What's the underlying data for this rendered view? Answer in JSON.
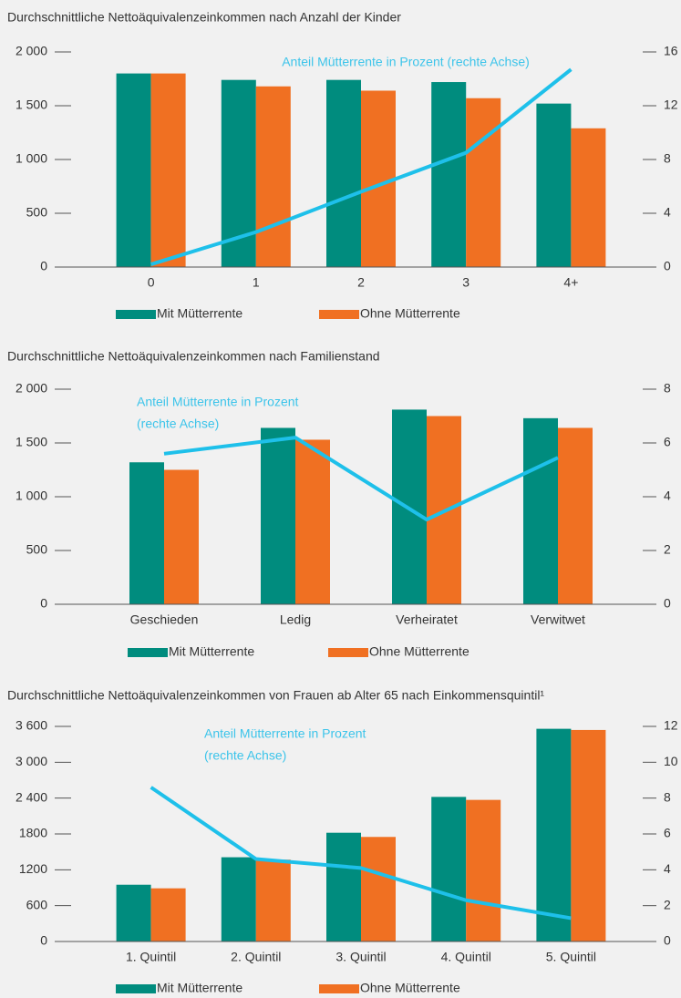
{
  "chart_data": [
    {
      "type": "bar",
      "title": "Durchschnittliche Nettoäquivalenzeinkommen nach Anzahl der Kinder",
      "categories": [
        "0",
        "1",
        "2",
        "3",
        "4+"
      ],
      "series": [
        {
          "name": "Mit Mütterrente",
          "color": "#008c7e",
          "values": [
            1800,
            1740,
            1740,
            1720,
            1520
          ]
        },
        {
          "name": "Ohne Mütterrente",
          "color": "#f07022",
          "values": [
            1800,
            1680,
            1640,
            1570,
            1290
          ]
        },
        {
          "name": "Anteil Mütterrente in Prozent",
          "color": "#1ec0ea",
          "axis": "y2",
          "kind": "line",
          "values": [
            0.2,
            2.6,
            5.6,
            8.5,
            14.7
          ]
        }
      ],
      "annotation": [
        "Anteil Mütterrente in Prozent (rechte Achse)"
      ],
      "ylim": [
        0,
        2000
      ],
      "yticks": [
        0,
        500,
        {
          "value": 1000,
          "label": "1 000"
        },
        {
          "value": 1500,
          "label": "1 500"
        },
        {
          "value": 2000,
          "label": "2 000"
        }
      ],
      "y2lim": [
        0,
        16
      ],
      "y2ticks": [
        0,
        4,
        8,
        12,
        16
      ]
    },
    {
      "type": "bar",
      "title": "Durchschnittliche Nettoäquivalenzeinkommen nach Familienstand",
      "categories": [
        "Geschieden",
        "Ledig",
        "Verheiratet",
        "Verwitwet"
      ],
      "series": [
        {
          "name": "Mit Mütterrente",
          "color": "#008c7e",
          "values": [
            1320,
            1640,
            1810,
            1730
          ]
        },
        {
          "name": "Ohne Mütterrente",
          "color": "#f07022",
          "values": [
            1250,
            1530,
            1750,
            1640
          ]
        },
        {
          "name": "Anteil Mütterrente in Prozent",
          "color": "#1ec0ea",
          "axis": "y2",
          "kind": "line",
          "values": [
            5.6,
            6.2,
            3.15,
            5.45
          ]
        }
      ],
      "annotation": [
        "Anteil Mütterrente in Prozent",
        "(rechte Achse)"
      ],
      "ylim": [
        0,
        2000
      ],
      "yticks": [
        0,
        500,
        {
          "value": 1000,
          "label": "1 000"
        },
        {
          "value": 1500,
          "label": "1 500"
        },
        {
          "value": 2000,
          "label": "2 000"
        }
      ],
      "y2lim": [
        0,
        8
      ],
      "y2ticks": [
        0,
        2,
        4,
        6,
        8
      ]
    },
    {
      "type": "bar",
      "title": "Durchschnittliche Nettoäquivalenzeinkommen von Frauen ab Alter 65 nach Einkommensquintil¹",
      "categories": [
        "1. Quintil",
        "2. Quintil",
        "3. Quintil",
        "4. Quintil",
        "5. Quintil"
      ],
      "series": [
        {
          "name": "Mit Mütterrente",
          "color": "#008c7e",
          "values": [
            950,
            1410,
            1820,
            2420,
            3560
          ]
        },
        {
          "name": "Ohne Mütterrente",
          "color": "#f07022",
          "values": [
            890,
            1370,
            1750,
            2370,
            3540
          ]
        },
        {
          "name": "Anteil Mütterrente in Prozent",
          "color": "#1ec0ea",
          "axis": "y2",
          "kind": "line",
          "values": [
            8.6,
            4.6,
            4.1,
            2.3,
            1.3
          ]
        }
      ],
      "annotation": [
        "Anteil Mütterrente in Prozent",
        "(rechte Achse)"
      ],
      "ylim": [
        0,
        3600
      ],
      "yticks": [
        0,
        600,
        {
          "value": 1200,
          "label": "1200"
        },
        {
          "value": 1800,
          "label": "1800"
        },
        {
          "value": 2400,
          "label": "2 400"
        },
        {
          "value": 3000,
          "label": "3 000"
        },
        {
          "value": 3600,
          "label": "3 600"
        }
      ],
      "y2lim": [
        0,
        12
      ],
      "y2ticks": [
        0,
        2,
        4,
        6,
        8,
        10,
        12
      ]
    }
  ]
}
